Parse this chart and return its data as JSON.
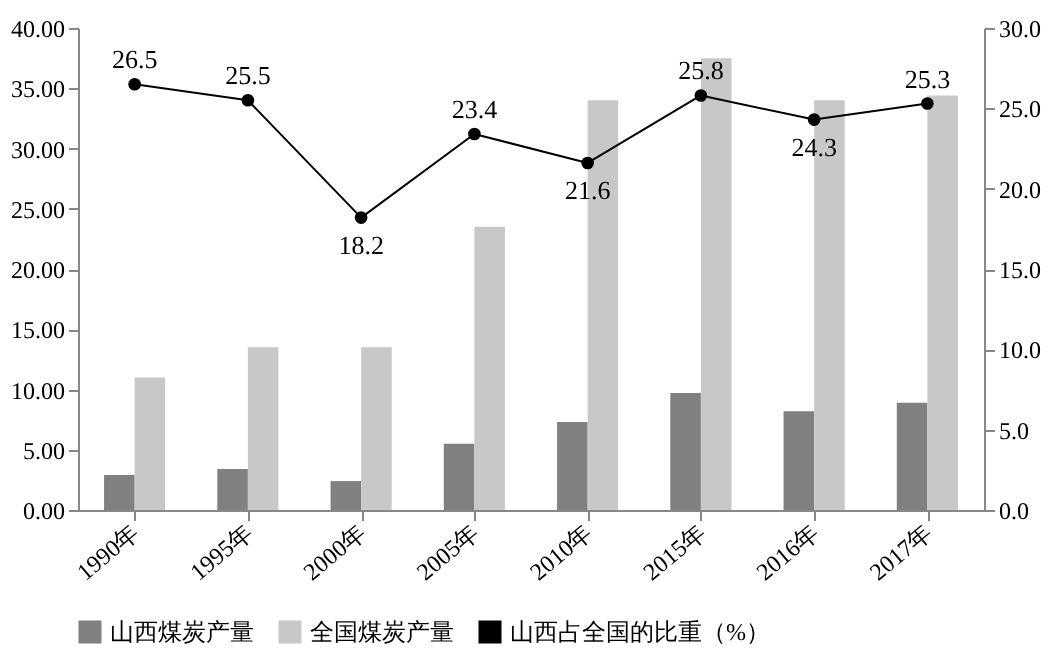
{
  "chart_data": {
    "type": "bar",
    "categories": [
      "1990年",
      "1995年",
      "2000年",
      "2005年",
      "2010年",
      "2015年",
      "2016年",
      "2017年"
    ],
    "series": [
      {
        "name": "山西煤炭产量",
        "color": "#808080",
        "values": [
          2.9,
          3.4,
          2.4,
          5.5,
          7.3,
          9.7,
          8.2,
          8.9
        ]
      },
      {
        "name": "全国煤炭产量",
        "color": "#c8c8c8",
        "values": [
          11.0,
          13.5,
          13.5,
          23.5,
          34.0,
          37.5,
          34.0,
          34.4
        ]
      },
      {
        "name": "山西占全国的比重（%）",
        "color": "#000000",
        "type": "line",
        "axis": "y2",
        "marker": "circle",
        "values": [
          26.5,
          25.5,
          18.2,
          23.4,
          21.6,
          25.8,
          24.3,
          25.3
        ],
        "data_labels": true
      }
    ],
    "ylim": [
      0,
      40
    ],
    "yticks": [
      {
        "value": 0,
        "label": "0.00"
      },
      {
        "value": 5,
        "label": "5.00"
      },
      {
        "value": 10,
        "label": "10.00"
      },
      {
        "value": 15,
        "label": "15.00"
      },
      {
        "value": 20,
        "label": "20.00"
      },
      {
        "value": 25,
        "label": "25.00"
      },
      {
        "value": 30,
        "label": "30.00"
      },
      {
        "value": 35,
        "label": "35.00"
      },
      {
        "value": 40,
        "label": "40.00"
      }
    ],
    "y2lim": [
      0,
      30
    ],
    "y2ticks": [
      {
        "value": 0,
        "label": "0.0"
      },
      {
        "value": 5,
        "label": "5.0"
      },
      {
        "value": 10,
        "label": "10.0"
      },
      {
        "value": 15,
        "label": "15.0"
      },
      {
        "value": 20,
        "label": "20.0"
      },
      {
        "value": 25,
        "label": "25.0"
      },
      {
        "value": 30,
        "label": "30.0"
      }
    ],
    "legend": "bottom",
    "grid": false
  }
}
